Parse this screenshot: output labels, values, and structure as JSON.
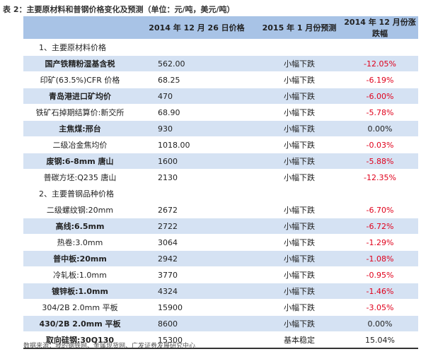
{
  "title": "表 2：主要原材料和普钢价格变化及预测（单位：元/吨，美元/吨）",
  "table": {
    "header": [
      "",
      "2014 年 12 月 26 日价格",
      "2015 年 1 月份预测",
      "2014 年 12 月份涨跌幅"
    ],
    "sections": [
      {
        "title": "1、主要原材料价格",
        "rows": [
          [
            "国产铁精粉湿基含税",
            "562.00",
            "小幅下跌",
            "-12.05%"
          ],
          [
            "印矿(63.5%)CFR 价格",
            "68.25",
            "小幅下跌",
            "-6.19%"
          ],
          [
            "青岛港进口矿均价",
            "470",
            "小幅下跌",
            "-6.00%"
          ],
          [
            "铁矿石掉期结算价:新交所",
            "68.90",
            "小幅下跌",
            "-5.78%"
          ],
          [
            "主焦煤:邢台",
            "930",
            "小幅下跌",
            "0.00%"
          ],
          [
            "二级冶金焦均价",
            "1018.00",
            "小幅下跌",
            "-0.03%"
          ],
          [
            "废钢:6-8mm 唐山",
            "1600",
            "小幅下跌",
            "-5.88%"
          ],
          [
            "普碳方坯:Q235 唐山",
            "2130",
            "小幅下跌",
            "-12.35%"
          ]
        ]
      },
      {
        "title": "2、主要普钢品种价格",
        "rows": [
          [
            "二级螺纹钢:20mm",
            "2672",
            "小幅下跌",
            "-6.70%"
          ],
          [
            "高线:6.5mm",
            "2722",
            "小幅下跌",
            "-6.72%"
          ],
          [
            "热卷:3.0mm",
            "3064",
            "小幅下跌",
            "-1.29%"
          ],
          [
            "普中板:20mm",
            "2942",
            "小幅下跌",
            "-1.08%"
          ],
          [
            "冷轧板:1.0mm",
            "3770",
            "小幅下跌",
            "-0.95%"
          ],
          [
            "镀锌板:1.0mm",
            "4324",
            "小幅下跌",
            "-1.46%"
          ],
          [
            "304/2B 2.0mm 平板",
            "15900",
            "小幅下跌",
            "-3.05%"
          ],
          [
            "430/2B 2.0mm 平板",
            "8600",
            "小幅下跌",
            "0.00%"
          ],
          [
            "取向硅钢:30Q130",
            "15300",
            "基本稳定",
            "15.04%"
          ]
        ]
      }
    ]
  },
  "source": "数据来源：我的钢铁网、金属现货网、广发证券发展研究中心"
}
